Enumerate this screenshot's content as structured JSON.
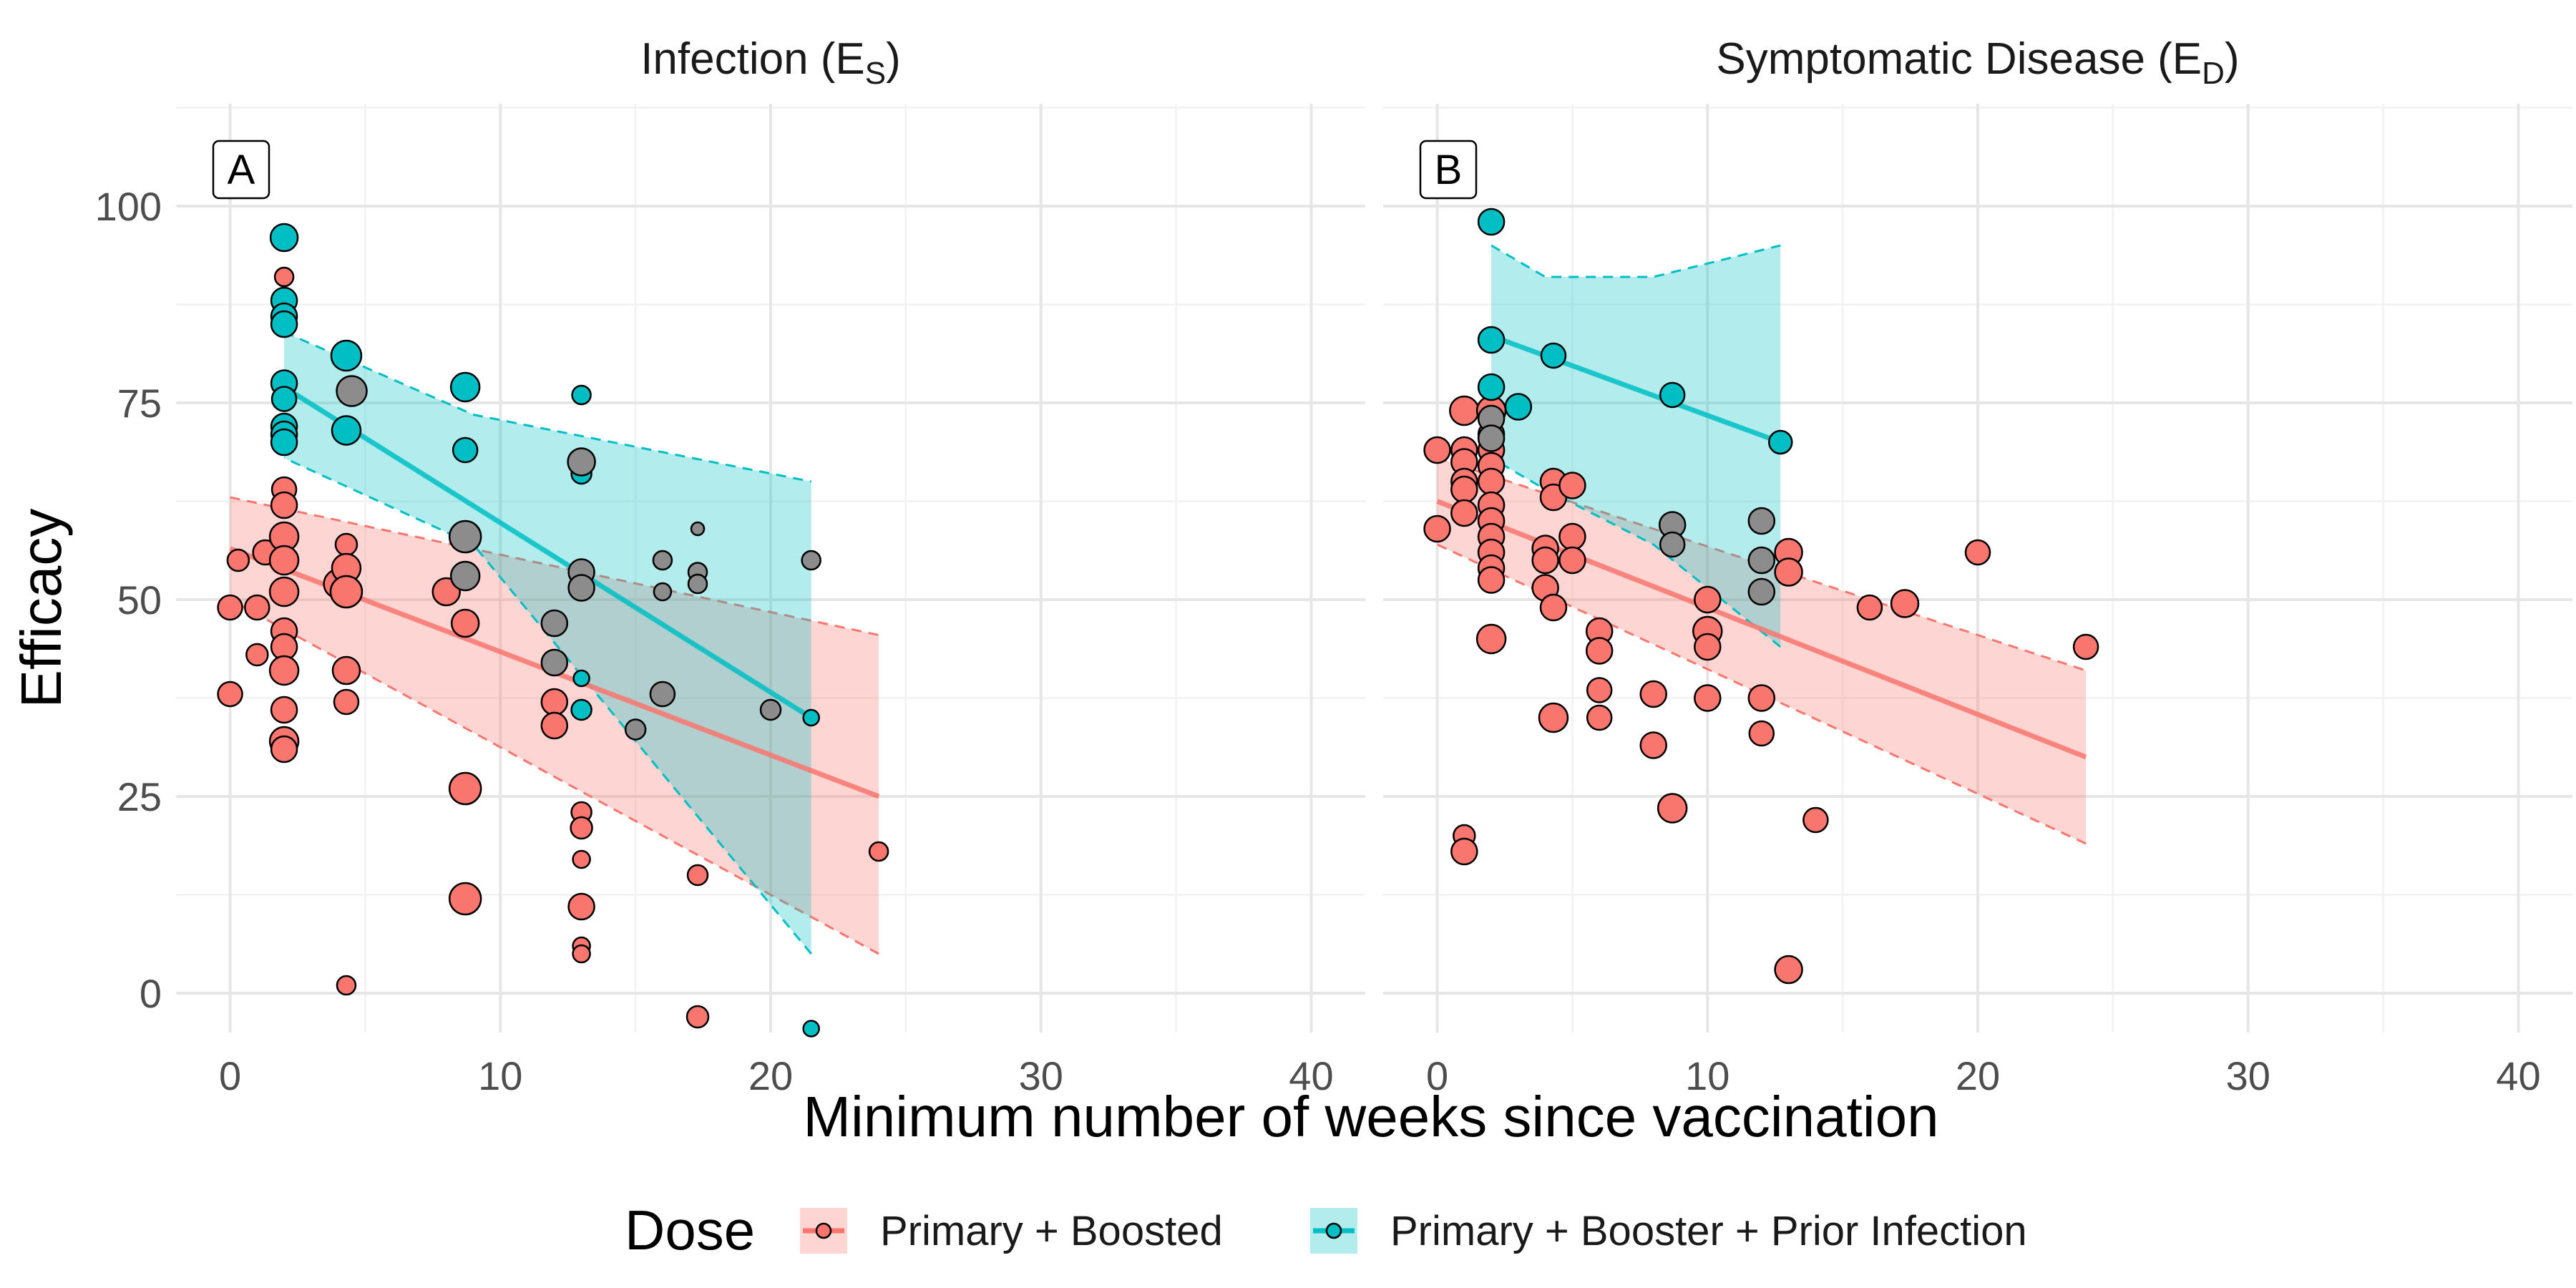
{
  "chart_data": {
    "type": "scatter",
    "xlabel": "Minimum number of weeks since vaccination",
    "ylabel": "Efficacy",
    "xlim": [
      -2,
      42
    ],
    "ylim": [
      -5,
      113
    ],
    "x_ticks": [
      0,
      10,
      20,
      30,
      40
    ],
    "x_ticks_text": [
      "0",
      "10",
      "20",
      "30",
      "40"
    ],
    "y_ticks": [
      0,
      25,
      50,
      75,
      100
    ],
    "y_ticks_text": [
      "0",
      "25",
      "50",
      "75",
      "100"
    ],
    "grid": true,
    "legend": {
      "position": "bottom",
      "title": "Dose",
      "entries": [
        {
          "label": "Primary + Boosted",
          "color": "#F8766D"
        },
        {
          "label": "Primary + Booster + Prior Infection",
          "color": "#00BFC4"
        }
      ]
    },
    "colors": {
      "boosted": "#F8766D",
      "prior": "#00BFC4"
    },
    "panels": [
      {
        "strip_main": "Infection (E",
        "strip_sub": "S",
        "strip_close": ")",
        "tag": "A",
        "series": [
          {
            "name": "Primary + Boosted",
            "points": [
              {
                "x": 0,
                "y": 49,
                "s": 2.4
              },
              {
                "x": 0,
                "y": 38,
                "s": 2.4
              },
              {
                "x": 0.3,
                "y": 55,
                "s": 2
              },
              {
                "x": 1,
                "y": 49,
                "s": 2.4
              },
              {
                "x": 1,
                "y": 43,
                "s": 2
              },
              {
                "x": 1.3,
                "y": 56,
                "s": 2.4
              },
              {
                "x": 2,
                "y": 91,
                "s": 1.6
              },
              {
                "x": 2,
                "y": 64,
                "s": 2.4
              },
              {
                "x": 2,
                "y": 62,
                "s": 2.6
              },
              {
                "x": 2,
                "y": 58,
                "s": 3
              },
              {
                "x": 2,
                "y": 55,
                "s": 3
              },
              {
                "x": 2,
                "y": 51,
                "s": 3
              },
              {
                "x": 2,
                "y": 46,
                "s": 2.6
              },
              {
                "x": 2,
                "y": 44,
                "s": 2.6
              },
              {
                "x": 2,
                "y": 41,
                "s": 3
              },
              {
                "x": 2,
                "y": 36,
                "s": 2.6
              },
              {
                "x": 2,
                "y": 32,
                "s": 3
              },
              {
                "x": 2,
                "y": 31,
                "s": 2.6
              },
              {
                "x": 4,
                "y": 52,
                "s": 3
              },
              {
                "x": 4.3,
                "y": 57,
                "s": 2
              },
              {
                "x": 4.3,
                "y": 54,
                "s": 3
              },
              {
                "x": 4.3,
                "y": 51,
                "s": 3.4
              },
              {
                "x": 4.3,
                "y": 41,
                "s": 2.8
              },
              {
                "x": 4.3,
                "y": 37,
                "s": 2.4
              },
              {
                "x": 4.3,
                "y": 1,
                "s": 1.6
              },
              {
                "x": 8,
                "y": 51,
                "s": 2.8
              },
              {
                "x": 8.7,
                "y": 47,
                "s": 2.8
              },
              {
                "x": 8.7,
                "y": 26,
                "s": 3.4
              },
              {
                "x": 8.7,
                "y": 12,
                "s": 3.4
              },
              {
                "x": 12,
                "y": 37,
                "s": 2.6
              },
              {
                "x": 12,
                "y": 34,
                "s": 2.6
              },
              {
                "x": 13,
                "y": 23,
                "s": 1.8
              },
              {
                "x": 13,
                "y": 21,
                "s": 2
              },
              {
                "x": 13,
                "y": 17,
                "s": 1.4
              },
              {
                "x": 13,
                "y": 11,
                "s": 2.6
              },
              {
                "x": 13,
                "y": 6,
                "s": 1.4
              },
              {
                "x": 13,
                "y": 5,
                "s": 1.4
              },
              {
                "x": 17.3,
                "y": 15,
                "s": 1.8
              },
              {
                "x": 17.3,
                "y": -3,
                "s": 2
              },
              {
                "x": 24,
                "y": 18,
                "s": 1.6
              }
            ],
            "fit": {
              "x": [
                0,
                24
              ],
              "y": [
                56.5,
                25
              ]
            },
            "ci": {
              "x": [
                0,
                24
              ],
              "upper": [
                63,
                45.5
              ],
              "lower": [
                50,
                5
              ]
            }
          },
          {
            "name": "Primary + Booster + Prior Infection",
            "points": [
              {
                "x": 2,
                "y": 96,
                "s": 2.8
              },
              {
                "x": 2,
                "y": 88,
                "s": 2.6
              },
              {
                "x": 2,
                "y": 86,
                "s": 2.6
              },
              {
                "x": 2,
                "y": 85,
                "s": 2.6
              },
              {
                "x": 2,
                "y": 77.5,
                "s": 2.6
              },
              {
                "x": 2,
                "y": 75.5,
                "s": 2.4
              },
              {
                "x": 2,
                "y": 72,
                "s": 2.6
              },
              {
                "x": 2,
                "y": 71,
                "s": 2.6
              },
              {
                "x": 2,
                "y": 70,
                "s": 2.6
              },
              {
                "x": 4.3,
                "y": 81,
                "s": 3.2
              },
              {
                "x": 4.3,
                "y": 71.5,
                "s": 3
              },
              {
                "x": 8.7,
                "y": 77,
                "s": 3
              },
              {
                "x": 8.7,
                "y": 69,
                "s": 2.4
              },
              {
                "x": 13,
                "y": 76,
                "s": 1.6
              },
              {
                "x": 13,
                "y": 66,
                "s": 1.8
              },
              {
                "x": 13,
                "y": 36,
                "s": 1.8
              },
              {
                "x": 13,
                "y": 40,
                "s": 1.2
              },
              {
                "x": 21.5,
                "y": -4.5,
                "s": 1.2
              },
              {
                "x": 21.5,
                "y": 35,
                "s": 1.2
              }
            ],
            "fit": {
              "x": [
                2,
                21.5
              ],
              "y": [
                77,
                35
              ]
            },
            "ci": {
              "x": [
                2,
                9,
                21.5
              ],
              "upper": [
                84,
                73.5,
                65
              ],
              "lower": [
                68,
                57,
                5
              ]
            }
          },
          {
            "name": "",
            "overlap_points": true,
            "points": [
              {
                "x": 4.5,
                "y": 76.5,
                "s": 3.2
              },
              {
                "x": 8.7,
                "y": 58,
                "s": 3.4
              },
              {
                "x": 8.7,
                "y": 53,
                "s": 3
              },
              {
                "x": 12,
                "y": 47,
                "s": 2.6
              },
              {
                "x": 12,
                "y": 42,
                "s": 2.6
              },
              {
                "x": 13,
                "y": 67.5,
                "s": 2.8
              },
              {
                "x": 13,
                "y": 53.5,
                "s": 2.6
              },
              {
                "x": 13,
                "y": 51.5,
                "s": 2.6
              },
              {
                "x": 15,
                "y": 33.5,
                "s": 1.8
              },
              {
                "x": 16,
                "y": 55,
                "s": 1.6
              },
              {
                "x": 16,
                "y": 51,
                "s": 1.4
              },
              {
                "x": 16,
                "y": 38,
                "s": 2.4
              },
              {
                "x": 17.3,
                "y": 59,
                "s": 0.8
              },
              {
                "x": 17.3,
                "y": 53.5,
                "s": 1.6
              },
              {
                "x": 17.3,
                "y": 52,
                "s": 1.6
              },
              {
                "x": 20,
                "y": 36,
                "s": 1.8
              },
              {
                "x": 21.5,
                "y": 55,
                "s": 1.6
              }
            ]
          }
        ]
      },
      {
        "strip_main": "Symptomatic Disease (E",
        "strip_sub": "D",
        "strip_close": ")",
        "tag": "B",
        "series": [
          {
            "name": "Primary + Boosted",
            "points": [
              {
                "x": 0,
                "y": 69,
                "s": 2.6
              },
              {
                "x": 0,
                "y": 59,
                "s": 2.6
              },
              {
                "x": 1,
                "y": 74,
                "s": 3
              },
              {
                "x": 1,
                "y": 69,
                "s": 2.6
              },
              {
                "x": 1,
                "y": 67.5,
                "s": 2.6
              },
              {
                "x": 1,
                "y": 65,
                "s": 2.6
              },
              {
                "x": 1,
                "y": 64,
                "s": 2.6
              },
              {
                "x": 1,
                "y": 61,
                "s": 2.6
              },
              {
                "x": 1,
                "y": 20,
                "s": 2
              },
              {
                "x": 1,
                "y": 18,
                "s": 2.6
              },
              {
                "x": 2,
                "y": 74,
                "s": 3
              },
              {
                "x": 2,
                "y": 71,
                "s": 2.6
              },
              {
                "x": 2,
                "y": 69,
                "s": 2.6
              },
              {
                "x": 2,
                "y": 67,
                "s": 2.6
              },
              {
                "x": 2,
                "y": 65,
                "s": 2.6
              },
              {
                "x": 2,
                "y": 62,
                "s": 2.6
              },
              {
                "x": 2,
                "y": 60,
                "s": 2.6
              },
              {
                "x": 2,
                "y": 58,
                "s": 2.6
              },
              {
                "x": 2,
                "y": 56,
                "s": 2.6
              },
              {
                "x": 2,
                "y": 54,
                "s": 2.6
              },
              {
                "x": 2,
                "y": 52.5,
                "s": 2.6
              },
              {
                "x": 2,
                "y": 45,
                "s": 3
              },
              {
                "x": 4,
                "y": 56.5,
                "s": 2.6
              },
              {
                "x": 4,
                "y": 55,
                "s": 2.6
              },
              {
                "x": 4,
                "y": 51.5,
                "s": 2.6
              },
              {
                "x": 4.3,
                "y": 65,
                "s": 2.6
              },
              {
                "x": 4.3,
                "y": 63,
                "s": 2.6
              },
              {
                "x": 4.3,
                "y": 49,
                "s": 2.6
              },
              {
                "x": 4.3,
                "y": 35,
                "s": 3
              },
              {
                "x": 5,
                "y": 64.5,
                "s": 2.6
              },
              {
                "x": 5,
                "y": 58,
                "s": 2.6
              },
              {
                "x": 5,
                "y": 55,
                "s": 2.6
              },
              {
                "x": 6,
                "y": 46,
                "s": 2.6
              },
              {
                "x": 6,
                "y": 43.5,
                "s": 2.6
              },
              {
                "x": 6,
                "y": 38.5,
                "s": 2.4
              },
              {
                "x": 6,
                "y": 35,
                "s": 2.4
              },
              {
                "x": 8,
                "y": 38,
                "s": 2.6
              },
              {
                "x": 8,
                "y": 31.5,
                "s": 2.6
              },
              {
                "x": 8.7,
                "y": 23.5,
                "s": 3
              },
              {
                "x": 10,
                "y": 50,
                "s": 2.6
              },
              {
                "x": 10,
                "y": 46,
                "s": 3
              },
              {
                "x": 10,
                "y": 44,
                "s": 2.6
              },
              {
                "x": 10,
                "y": 37.5,
                "s": 2.6
              },
              {
                "x": 12,
                "y": 37.5,
                "s": 2.6
              },
              {
                "x": 12,
                "y": 33,
                "s": 2.4
              },
              {
                "x": 13,
                "y": 56,
                "s": 2.8
              },
              {
                "x": 13,
                "y": 53.5,
                "s": 2.8
              },
              {
                "x": 13,
                "y": 3,
                "s": 2.8
              },
              {
                "x": 14,
                "y": 22,
                "s": 2.4
              },
              {
                "x": 16,
                "y": 49,
                "s": 2.4
              },
              {
                "x": 17.3,
                "y": 49.5,
                "s": 2.8
              },
              {
                "x": 20,
                "y": 56,
                "s": 2.4
              },
              {
                "x": 24,
                "y": 44,
                "s": 2.4
              }
            ],
            "fit": {
              "x": [
                0,
                24
              ],
              "y": [
                62.5,
                30
              ]
            },
            "ci": {
              "x": [
                0,
                24
              ],
              "upper": [
                68,
                41
              ],
              "lower": [
                57,
                19
              ]
            }
          },
          {
            "name": "Primary + Booster + Prior Infection",
            "points": [
              {
                "x": 2,
                "y": 98,
                "s": 2.6
              },
              {
                "x": 2,
                "y": 83,
                "s": 2.6
              },
              {
                "x": 2,
                "y": 77,
                "s": 2.6
              },
              {
                "x": 3,
                "y": 74.5,
                "s": 2.6
              },
              {
                "x": 4.3,
                "y": 81,
                "s": 2.4
              },
              {
                "x": 8.7,
                "y": 76,
                "s": 2.4
              },
              {
                "x": 12.7,
                "y": 70,
                "s": 2.2
              }
            ],
            "fit": {
              "x": [
                2,
                12.7
              ],
              "y": [
                83.5,
                70
              ]
            },
            "ci": {
              "x": [
                2,
                4,
                8,
                12.7
              ],
              "upper": [
                95,
                91,
                91,
                95
              ],
              "lower": [
                68,
                64,
                57,
                44
              ]
            }
          },
          {
            "name": "",
            "overlap_points": true,
            "points": [
              {
                "x": 2,
                "y": 73,
                "s": 2.6
              },
              {
                "x": 2,
                "y": 70.5,
                "s": 2.6
              },
              {
                "x": 8.7,
                "y": 59.5,
                "s": 2.6
              },
              {
                "x": 8.7,
                "y": 57,
                "s": 2.4
              },
              {
                "x": 12,
                "y": 60,
                "s": 2.6
              },
              {
                "x": 12,
                "y": 55,
                "s": 2.6
              },
              {
                "x": 12,
                "y": 51,
                "s": 2.6
              }
            ]
          }
        ]
      }
    ]
  }
}
